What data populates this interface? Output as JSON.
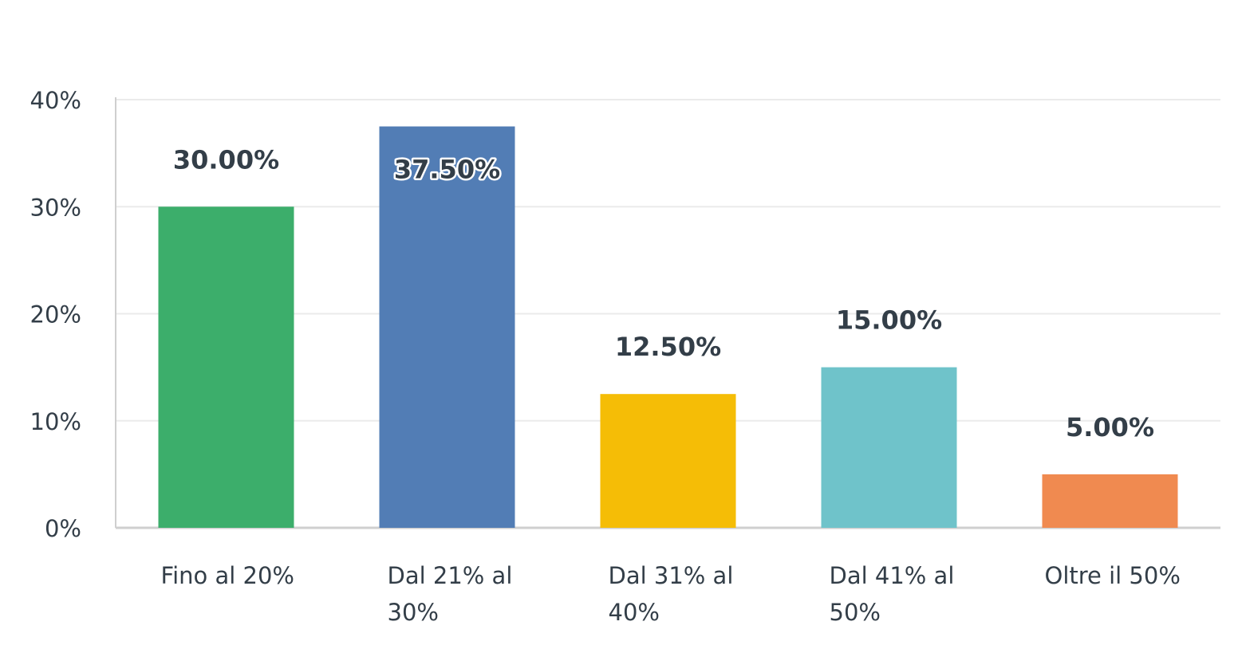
{
  "chart_data": {
    "type": "bar",
    "title": "",
    "xlabel": "",
    "ylabel": "",
    "ylim": [
      0,
      40
    ],
    "yticks": [
      "0%",
      "10%",
      "20%",
      "30%",
      "40%"
    ],
    "ytick_values": [
      0,
      10,
      20,
      30,
      40
    ],
    "grid": true,
    "categories": [
      [
        "Fino al 20%"
      ],
      [
        "Dal 21% al",
        "30%"
      ],
      [
        "Dal 31% al",
        "40%"
      ],
      [
        "Dal 41% al",
        "50%"
      ],
      [
        "Oltre il 50%"
      ]
    ],
    "values": [
      30.0,
      37.5,
      12.5,
      15.0,
      5.0
    ],
    "data_labels": [
      "30.00%",
      "37.50%",
      "12.50%",
      "15.00%",
      "5.00%"
    ],
    "colors": [
      "#3cae6b",
      "#527db5",
      "#f5bd06",
      "#6fc3ca",
      "#f08a50"
    ],
    "grid_color": "#ebebeb",
    "axis_color": "#cfcfcf",
    "text_color": "#333e48"
  }
}
